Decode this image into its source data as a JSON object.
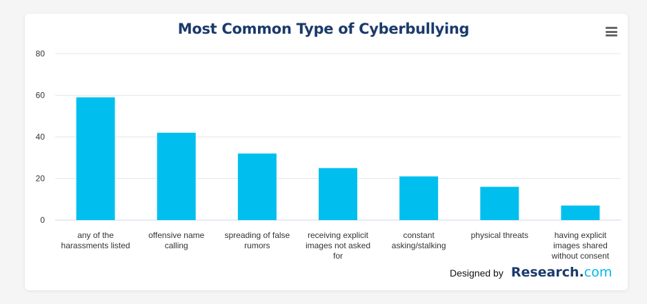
{
  "chart_data": {
    "type": "bar",
    "title": "Most Common Type of Cyberbullying",
    "categories": [
      [
        "any of the",
        "harassments listed"
      ],
      [
        "offensive name",
        "calling"
      ],
      [
        "spreading of false",
        "rumors"
      ],
      [
        "receiving explicit",
        "images not asked",
        "for"
      ],
      [
        "constant",
        "asking/stalking"
      ],
      [
        "physical threats"
      ],
      [
        "having explicit",
        "images shared",
        "without consent"
      ]
    ],
    "values": [
      59,
      42,
      32,
      25,
      21,
      16,
      7
    ],
    "ylim": [
      0,
      80
    ],
    "yticks": [
      0,
      20,
      40,
      60,
      80
    ],
    "xlabel": "",
    "ylabel": "",
    "grid": true,
    "bar_color": "#00bfee"
  },
  "credit": {
    "prefix": "Designed by",
    "brand_main": "Research",
    "brand_dot": ".",
    "brand_tld": "com"
  },
  "icons": {
    "menu": "hamburger-menu-icon"
  }
}
